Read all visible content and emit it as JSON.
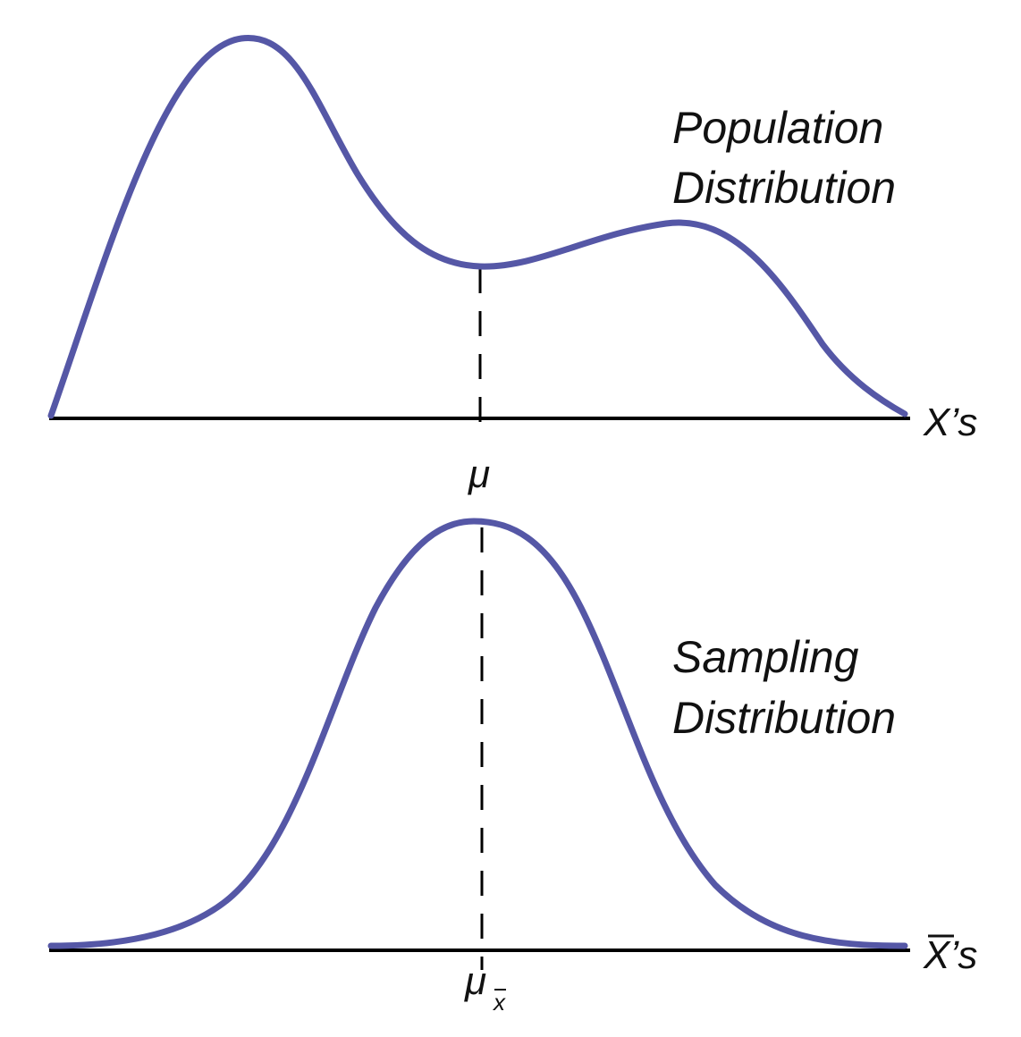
{
  "colors": {
    "curve": "#5557a6",
    "axis": "#000000",
    "text": "#111111"
  },
  "population": {
    "title_line1": "Population",
    "title_line2": "Distribution",
    "axis_label": "X’s",
    "mean_label": "μ"
  },
  "sampling": {
    "title_line1": "Sampling",
    "title_line2": "Distribution",
    "axis_label": "X’s",
    "mean_label": "μ",
    "mean_subscript": "x"
  }
}
